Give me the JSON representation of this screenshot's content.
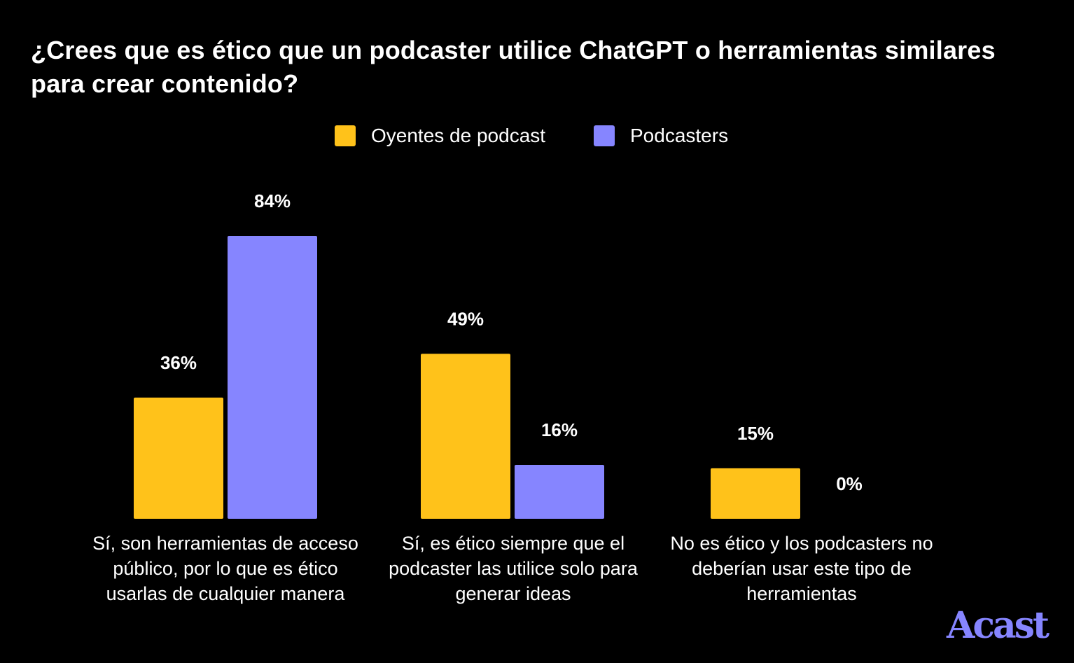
{
  "chart_data": {
    "type": "bar",
    "title": "¿Crees que es ético que un podcaster utilice ChatGPT o herramientas similares para crear contenido?",
    "categories": [
      "Sí, son herramientas de acceso público, por lo que es ético usarlas de cualquier manera",
      "Sí, es ético siempre que el podcaster las utilice solo para generar ideas",
      "No es ético y los podcasters no deberían usar este tipo de herramientas"
    ],
    "series": [
      {
        "name": "Oyentes de podcast",
        "color": "#FFC21A",
        "values": [
          36,
          49,
          15
        ],
        "labels": [
          "36%",
          "49%",
          "15%"
        ]
      },
      {
        "name": "Podcasters",
        "color": "#8685FF",
        "values": [
          84,
          16,
          0
        ],
        "labels": [
          "84%",
          "16%",
          "0%"
        ]
      }
    ],
    "xlabel": "",
    "ylabel": "",
    "ylim": [
      0,
      84
    ],
    "grid": false,
    "legend": "top-center"
  },
  "brand": {
    "logo_text": "Acast",
    "logo_color": "#8685FF"
  }
}
